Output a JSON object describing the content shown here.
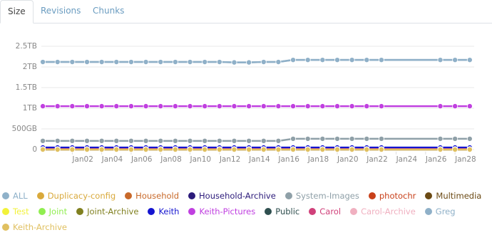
{
  "tabs": [
    "Size",
    "Revisions",
    "Chunks"
  ],
  "chart_data": {
    "type": "line",
    "x": [
      0,
      1,
      2,
      3,
      4,
      5,
      6,
      7,
      8,
      9,
      10,
      11,
      12,
      13,
      14,
      15,
      16,
      17,
      18,
      19,
      20,
      21,
      22,
      23,
      27,
      28,
      29
    ],
    "xlim": [
      -0.1,
      29.3
    ],
    "xticks": [
      {
        "value": 2,
        "label": "Jan02"
      },
      {
        "value": 4,
        "label": "Jan04"
      },
      {
        "value": 6,
        "label": "Jan06"
      },
      {
        "value": 8,
        "label": "Jan08"
      },
      {
        "value": 10,
        "label": "Jan10"
      },
      {
        "value": 12,
        "label": "Jan12"
      },
      {
        "value": 14,
        "label": "Jan14"
      },
      {
        "value": 16,
        "label": "Jan16"
      },
      {
        "value": 18,
        "label": "Jan18"
      },
      {
        "value": 20,
        "label": "Jan20"
      },
      {
        "value": 22,
        "label": "Jan22"
      },
      {
        "value": 24,
        "label": "Jan24"
      },
      {
        "value": 26,
        "label": "Jan26"
      },
      {
        "value": 28,
        "label": "Jan28"
      }
    ],
    "ylim": [
      -0.05,
      2.6
    ],
    "yticks": [
      0,
      {
        "value": 0.5,
        "label": "500GB"
      },
      {
        "value": 1,
        "label": "1TB"
      },
      {
        "value": 1.5,
        "label": "1.5TB"
      },
      {
        "value": 2,
        "label": "2TB"
      },
      {
        "value": 2.5,
        "label": "2.5TB"
      }
    ],
    "grid": true,
    "series": [
      {
        "name": "ALL",
        "color": "#8fb1c9",
        "values": [
          2.12,
          2.12,
          2.12,
          2.12,
          2.12,
          2.12,
          2.12,
          2.12,
          2.12,
          2.12,
          2.12,
          2.12,
          2.12,
          2.11,
          2.11,
          2.12,
          2.12,
          2.17,
          2.17,
          2.17,
          2.17,
          2.17,
          2.17,
          2.17,
          2.17,
          2.17,
          2.17
        ]
      },
      {
        "name": "Duplicacy-config",
        "color": "#d9a93b",
        "values": [
          0,
          0,
          0,
          0,
          0,
          0,
          0,
          0,
          0,
          0,
          0,
          0,
          0,
          0,
          0,
          0,
          0,
          0,
          0,
          0,
          0,
          0,
          0,
          0,
          0,
          0,
          0
        ]
      },
      {
        "name": "Household",
        "color": "#c8692a",
        "values": [
          0.01,
          0.01,
          0.01,
          0.01,
          0.01,
          0.01,
          0.01,
          0.01,
          0.01,
          0.01,
          0.01,
          0.01,
          0.01,
          0.01,
          0.01,
          0.01,
          0.01,
          0.01,
          0.01,
          0.01,
          0.01,
          0.01,
          0.01,
          0.01,
          0.01,
          0.01,
          0.01
        ]
      },
      {
        "name": "Household-Archive",
        "color": "#2b1a7a",
        "values": [
          0.04,
          0.04,
          0.04,
          0.04,
          0.04,
          0.04,
          0.04,
          0.04,
          0.04,
          0.04,
          0.04,
          0.04,
          0.04,
          0.04,
          0.04,
          0.04,
          0.04,
          0.04,
          0.04,
          0.04,
          0.04,
          0.04,
          0.04,
          0.04,
          0.04,
          0.04,
          0.04
        ]
      },
      {
        "name": "System-Images",
        "color": "#8fa0a8",
        "values": [
          0.21,
          0.21,
          0.21,
          0.21,
          0.21,
          0.21,
          0.21,
          0.21,
          0.21,
          0.21,
          0.21,
          0.21,
          0.21,
          0.21,
          0.21,
          0.21,
          0.21,
          0.26,
          0.26,
          0.26,
          0.26,
          0.26,
          0.26,
          0.26,
          0.26,
          0.26,
          0.26
        ]
      },
      {
        "name": "photochr",
        "color": "#c8401a",
        "values": [
          0,
          0,
          0,
          0,
          0,
          0,
          0,
          0,
          0,
          0,
          0,
          0,
          0,
          0,
          0,
          0,
          0,
          0,
          0,
          0,
          0,
          0,
          0,
          0,
          0,
          0,
          0
        ]
      },
      {
        "name": "Multimedia",
        "color": "#6b4a14",
        "values": [
          0,
          0,
          0,
          0,
          0,
          0,
          0,
          0,
          0,
          0,
          0,
          0,
          0,
          0,
          0,
          0,
          0,
          0,
          0,
          0,
          0,
          0,
          0,
          0,
          0,
          0,
          0
        ]
      },
      {
        "name": "Test",
        "color": "#f2f23a",
        "values": [
          0,
          0,
          0,
          0,
          0,
          0,
          0,
          0,
          0,
          0,
          0,
          0,
          0,
          0,
          0,
          0,
          0,
          0,
          0,
          0,
          0,
          0,
          0,
          0,
          0,
          0,
          0
        ]
      },
      {
        "name": "Joint",
        "color": "#90ee50",
        "values": [
          0,
          0,
          0,
          0,
          0,
          0,
          0,
          0,
          0,
          0,
          0,
          0,
          0,
          0,
          0,
          0,
          0,
          0,
          0,
          0,
          0,
          0,
          0,
          0,
          0,
          0,
          0
        ]
      },
      {
        "name": "Joint-Archive",
        "color": "#808020",
        "values": [
          0,
          0,
          0,
          0,
          0,
          0,
          0,
          0,
          0,
          0,
          0,
          0,
          0,
          0,
          0,
          0,
          0,
          0,
          0,
          0,
          0,
          0,
          0,
          0,
          0,
          0,
          0
        ]
      },
      {
        "name": "Keith",
        "color": "#1414d0",
        "values": [
          0.05,
          0.05,
          0.05,
          0.05,
          0.05,
          0.05,
          0.05,
          0.05,
          0.05,
          0.05,
          0.05,
          0.05,
          0.05,
          0.05,
          0.05,
          0.05,
          0.05,
          0.05,
          0.05,
          0.05,
          0.05,
          0.05,
          0.05,
          0.05,
          0.05,
          0.05,
          0.05
        ]
      },
      {
        "name": "Keith-Pictures",
        "color": "#c040e0",
        "values": [
          1.05,
          1.05,
          1.05,
          1.05,
          1.05,
          1.05,
          1.05,
          1.05,
          1.05,
          1.05,
          1.05,
          1.05,
          1.05,
          1.05,
          1.05,
          1.05,
          1.05,
          1.05,
          1.05,
          1.05,
          1.05,
          1.05,
          1.05,
          1.05,
          1.05,
          1.05,
          1.05
        ]
      },
      {
        "name": "Public",
        "color": "#2f4f4f",
        "values": [
          0,
          0,
          0,
          0,
          0,
          0,
          0,
          0,
          0,
          0,
          0,
          0,
          0,
          0,
          0,
          0,
          0,
          0,
          0,
          0,
          0,
          0,
          0,
          0,
          0,
          0,
          0
        ]
      },
      {
        "name": "Carol",
        "color": "#d0407a",
        "values": [
          0.01,
          0.01,
          0.01,
          0.01,
          0.01,
          0.01,
          0.01,
          0.01,
          0.01,
          0.01,
          0.01,
          0.01,
          0.01,
          0.01,
          0.01,
          0.01,
          0.01,
          0.01,
          0.01,
          0.01,
          0.01,
          0.01,
          0.01,
          0.01,
          0.01,
          0.01,
          0.01
        ]
      },
      {
        "name": "Carol-Archive",
        "color": "#f0b0c0",
        "values": [
          0,
          0,
          0,
          0,
          0,
          0,
          0,
          0,
          0,
          0,
          0,
          0,
          0,
          0,
          0,
          0,
          0,
          0,
          0,
          0,
          0,
          0,
          0,
          0,
          0,
          0,
          0
        ]
      },
      {
        "name": "Greg",
        "color": "#8fb0c8",
        "values": [
          2.12,
          2.12,
          2.12,
          2.12,
          2.12,
          2.12,
          2.12,
          2.12,
          2.12,
          2.12,
          2.12,
          2.12,
          2.12,
          2.11,
          2.11,
          2.12,
          2.12,
          2.17,
          2.17,
          2.17,
          2.17,
          2.17,
          2.17,
          2.17,
          2.17,
          2.17,
          2.17
        ]
      },
      {
        "name": "Keith-Archive",
        "color": "#e0c060",
        "values": [
          0,
          0,
          0,
          0,
          0,
          0,
          0,
          0,
          0,
          0,
          0,
          0,
          0,
          0,
          0,
          0,
          0,
          0,
          0,
          0,
          0,
          0,
          0,
          0,
          0,
          0,
          0
        ]
      }
    ]
  }
}
